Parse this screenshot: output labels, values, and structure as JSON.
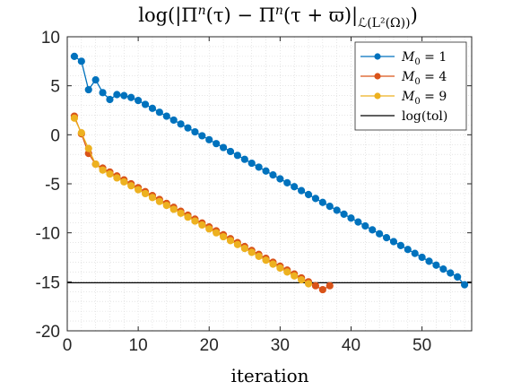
{
  "chart_data": {
    "type": "line",
    "title": "log(|Πⁿ(τ) − Πⁿ(τ + ϖ)|_{ℒ(L²(Ω))})",
    "title_parts": {
      "main": "log(|Π",
      "sup1": "n",
      "mid1": "(τ) − Π",
      "sup2": "n",
      "mid2": "(τ + ϖ)|",
      "sub": "ℒ(L²(Ω))",
      "end": ")"
    },
    "xlabel": "iteration",
    "ylabel": "",
    "xlim": [
      0,
      57
    ],
    "ylim": [
      -20,
      10
    ],
    "xticks": [
      0,
      10,
      20,
      30,
      40,
      50
    ],
    "yticks": [
      10,
      5,
      0,
      -5,
      -10,
      -15,
      -20
    ],
    "xtick_labels": [
      "0",
      "10",
      "20",
      "30",
      "40",
      "50"
    ],
    "ytick_labels": [
      "10",
      "5",
      "0",
      "-5",
      "-10",
      "-15",
      "-20"
    ],
    "grid": "minor dotted",
    "legend_position": "top-right",
    "series": [
      {
        "name": "M0 = 1",
        "color": "#0072BD",
        "x": [
          1,
          2,
          3,
          4,
          5,
          6,
          7,
          8,
          9,
          10,
          11,
          12,
          13,
          14,
          15,
          16,
          17,
          18,
          19,
          20,
          21,
          22,
          23,
          24,
          25,
          26,
          27,
          28,
          29,
          30,
          31,
          32,
          33,
          34,
          35,
          36,
          37,
          38,
          39,
          40,
          41,
          42,
          43,
          44,
          45,
          46,
          47,
          48,
          49,
          50,
          51,
          52,
          53,
          54,
          55,
          56
        ],
        "y": [
          8.0,
          7.5,
          4.6,
          5.6,
          4.3,
          3.6,
          4.1,
          4.0,
          3.8,
          3.5,
          3.1,
          2.7,
          2.3,
          1.9,
          1.5,
          1.1,
          0.7,
          0.3,
          -0.1,
          -0.5,
          -0.9,
          -1.3,
          -1.7,
          -2.1,
          -2.5,
          -2.9,
          -3.3,
          -3.7,
          -4.1,
          -4.5,
          -4.9,
          -5.3,
          -5.7,
          -6.1,
          -6.5,
          -6.9,
          -7.3,
          -7.7,
          -8.1,
          -8.5,
          -8.9,
          -9.3,
          -9.7,
          -10.1,
          -10.5,
          -10.9,
          -11.3,
          -11.7,
          -12.1,
          -12.5,
          -12.9,
          -13.3,
          -13.7,
          -14.1,
          -14.5,
          -15.3
        ]
      },
      {
        "name": "M0 = 4",
        "color": "#D95319",
        "x": [
          1,
          2,
          3,
          4,
          5,
          6,
          7,
          8,
          9,
          10,
          11,
          12,
          13,
          14,
          15,
          16,
          17,
          18,
          19,
          20,
          21,
          22,
          23,
          24,
          25,
          26,
          27,
          28,
          29,
          30,
          31,
          32,
          33,
          34,
          35,
          36,
          37
        ],
        "y": [
          1.9,
          0.1,
          -1.9,
          -3.0,
          -3.4,
          -3.8,
          -4.2,
          -4.6,
          -5.0,
          -5.4,
          -5.8,
          -6.2,
          -6.6,
          -7.0,
          -7.4,
          -7.8,
          -8.2,
          -8.6,
          -9.0,
          -9.4,
          -9.8,
          -10.2,
          -10.6,
          -11.0,
          -11.4,
          -11.8,
          -12.2,
          -12.6,
          -13.0,
          -13.4,
          -13.8,
          -14.2,
          -14.6,
          -15.0,
          -15.4,
          -15.8,
          -15.4
        ]
      },
      {
        "name": "M0 = 9",
        "color": "#EDB120",
        "x": [
          1,
          2,
          3,
          4,
          5,
          6,
          7,
          8,
          9,
          10,
          11,
          12,
          13,
          14,
          15,
          16,
          17,
          18,
          19,
          20,
          21,
          22,
          23,
          24,
          25,
          26,
          27,
          28,
          29,
          30,
          31,
          32,
          33,
          34
        ],
        "y": [
          1.7,
          0.2,
          -1.4,
          -3.0,
          -3.6,
          -4.0,
          -4.4,
          -4.8,
          -5.2,
          -5.6,
          -6.0,
          -6.4,
          -6.8,
          -7.2,
          -7.6,
          -8.0,
          -8.4,
          -8.8,
          -9.2,
          -9.6,
          -10.0,
          -10.4,
          -10.8,
          -11.2,
          -11.6,
          -12.0,
          -12.4,
          -12.8,
          -13.2,
          -13.6,
          -14.0,
          -14.4,
          -14.8,
          -15.2
        ]
      },
      {
        "name": "log(tol)",
        "color": "#000000",
        "x": [
          0,
          57
        ],
        "y": [
          -15.1,
          -15.1
        ]
      }
    ],
    "legend_labels": [
      {
        "var": "M",
        "sub": "0",
        "rest": " = 1"
      },
      {
        "var": "M",
        "sub": "0",
        "rest": " = 4"
      },
      {
        "var": "M",
        "sub": "0",
        "rest": " = 9"
      },
      {
        "var": "",
        "sub": "",
        "rest": "log(tol)"
      }
    ]
  }
}
